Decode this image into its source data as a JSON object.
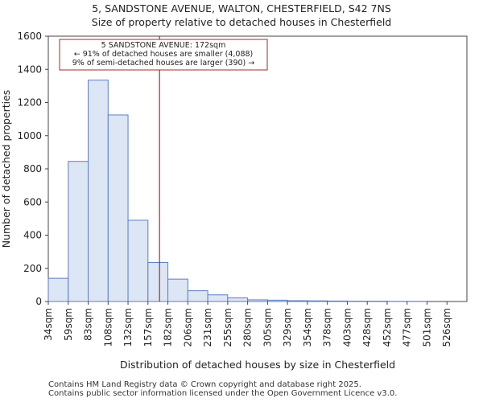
{
  "chart_data": {
    "type": "bar",
    "title": "5, SANDSTONE AVENUE, WALTON, CHESTERFIELD, S42 7NS",
    "subtitle": "Size of property relative to detached houses in Chesterfield",
    "xlabel": "Distribution of detached houses by size in Chesterfield",
    "ylabel": "Number of detached properties",
    "categories": [
      "34sqm",
      "59sqm",
      "83sqm",
      "108sqm",
      "132sqm",
      "157sqm",
      "182sqm",
      "206sqm",
      "231sqm",
      "255sqm",
      "280sqm",
      "305sqm",
      "329sqm",
      "354sqm",
      "378sqm",
      "403sqm",
      "428sqm",
      "452sqm",
      "477sqm",
      "501sqm",
      "526sqm"
    ],
    "values": [
      140,
      845,
      1335,
      1125,
      490,
      235,
      135,
      65,
      40,
      22,
      10,
      8,
      5,
      4,
      3,
      2,
      2,
      1,
      1,
      0,
      0
    ],
    "ylim": [
      0,
      1600
    ],
    "yticks": [
      0,
      200,
      400,
      600,
      800,
      1000,
      1200,
      1400,
      1600
    ],
    "bar_color": "#dce6f5",
    "bar_edge_color": "#5b7fc1",
    "marker": {
      "value_index": 5.58,
      "color": "#a52a2a",
      "annotation_lines": [
        "5 SANDSTONE AVENUE: 172sqm",
        "← 91% of detached houses are smaller (4,088)",
        "9% of semi-detached houses are larger (390) →"
      ]
    }
  },
  "footer": {
    "line1": "Contains HM Land Registry data © Crown copyright and database right 2025.",
    "line2": "Contains public sector information licensed under the Open Government Licence v3.0."
  }
}
